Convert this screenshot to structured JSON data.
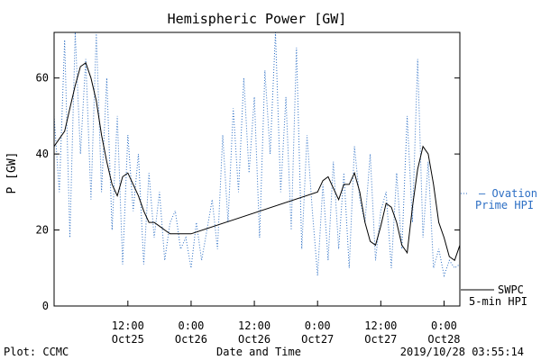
{
  "chart_data": {
    "type": "line",
    "title": "Hemispheric Power [GW]",
    "xlabel": "Date and Time",
    "ylabel": "P [GW]",
    "ylim": [
      0,
      72
    ],
    "xlim": [
      "2019-10-24T22:00",
      "2019-10-28T03:00"
    ],
    "yticks": [
      0,
      20,
      40,
      60
    ],
    "xticks": [
      {
        "t": "2019-10-25T12:00",
        "label1": "12:00",
        "label2": "Oct25"
      },
      {
        "t": "2019-10-26T00:00",
        "label1": "0:00",
        "label2": "Oct26"
      },
      {
        "t": "2019-10-26T12:00",
        "label1": "12:00",
        "label2": "Oct26"
      },
      {
        "t": "2019-10-27T00:00",
        "label1": "0:00",
        "label2": "Oct27"
      },
      {
        "t": "2019-10-27T12:00",
        "label1": "12:00",
        "label2": "Oct27"
      },
      {
        "t": "2019-10-28T00:00",
        "label1": "0:00",
        "label2": "Oct28"
      }
    ],
    "grid": false,
    "legend": [
      {
        "line1": "— Ovation",
        "line2": "Prime HPI",
        "color": "#2d6fc4",
        "style": "dotted"
      },
      {
        "line1": "SWPC",
        "line2": "5-min HPI",
        "color": "#000000",
        "style": "solid"
      }
    ],
    "series": [
      {
        "style": "solid",
        "color": "#000000",
        "x": [
          "2019-10-24T22:00",
          "2019-10-24T23:00",
          "2019-10-25T00:00",
          "2019-10-25T01:00",
          "2019-10-25T02:00",
          "2019-10-25T03:00",
          "2019-10-25T04:00",
          "2019-10-25T05:00",
          "2019-10-25T06:00",
          "2019-10-25T07:00",
          "2019-10-25T08:00",
          "2019-10-25T09:00",
          "2019-10-25T10:00",
          "2019-10-25T11:00",
          "2019-10-25T12:00",
          "2019-10-25T13:00",
          "2019-10-25T14:00",
          "2019-10-25T15:00",
          "2019-10-25T16:00",
          "2019-10-25T17:00",
          "2019-10-25T18:00",
          "2019-10-25T19:00",
          "2019-10-25T20:00",
          "2019-10-25T21:00",
          "2019-10-25T22:00",
          "2019-10-25T23:00",
          "2019-10-26T00:00",
          "2019-10-27T00:00",
          "2019-10-27T01:00",
          "2019-10-27T02:00",
          "2019-10-27T03:00",
          "2019-10-27T04:00",
          "2019-10-27T05:00",
          "2019-10-27T06:00",
          "2019-10-27T07:00",
          "2019-10-27T08:00",
          "2019-10-27T09:00",
          "2019-10-27T10:00",
          "2019-10-27T11:00",
          "2019-10-27T12:00",
          "2019-10-27T13:00",
          "2019-10-27T14:00",
          "2019-10-27T15:00",
          "2019-10-27T16:00",
          "2019-10-27T17:00",
          "2019-10-27T18:00",
          "2019-10-27T19:00",
          "2019-10-27T20:00",
          "2019-10-27T21:00",
          "2019-10-27T22:00",
          "2019-10-27T23:00",
          "2019-10-28T00:00",
          "2019-10-28T01:00",
          "2019-10-28T02:00",
          "2019-10-28T03:00"
        ],
        "y": [
          42,
          44,
          46,
          52,
          58,
          63,
          64,
          60,
          54,
          45,
          38,
          32,
          29,
          34,
          35,
          32,
          29,
          25,
          22,
          22,
          21,
          20,
          19,
          19,
          19,
          19,
          19,
          30,
          33,
          34,
          31,
          28,
          32,
          32,
          35,
          30,
          22,
          17,
          16,
          21,
          27,
          26,
          22,
          16,
          14,
          26,
          36,
          42,
          40,
          32,
          22,
          18,
          13,
          12,
          16
        ]
      },
      {
        "style": "dotted",
        "color": "#2d6fc4",
        "x": [
          "2019-10-24T22:00",
          "2019-10-24T23:00",
          "2019-10-25T00:00",
          "2019-10-25T01:00",
          "2019-10-25T02:00",
          "2019-10-25T03:00",
          "2019-10-25T04:00",
          "2019-10-25T05:00",
          "2019-10-25T06:00",
          "2019-10-25T07:00",
          "2019-10-25T08:00",
          "2019-10-25T09:00",
          "2019-10-25T10:00",
          "2019-10-25T11:00",
          "2019-10-25T12:00",
          "2019-10-25T13:00",
          "2019-10-25T14:00",
          "2019-10-25T15:00",
          "2019-10-25T16:00",
          "2019-10-25T17:00",
          "2019-10-25T18:00",
          "2019-10-25T19:00",
          "2019-10-25T20:00",
          "2019-10-25T21:00",
          "2019-10-25T22:00",
          "2019-10-25T23:00",
          "2019-10-26T00:00",
          "2019-10-26T01:00",
          "2019-10-26T02:00",
          "2019-10-26T03:00",
          "2019-10-26T04:00",
          "2019-10-26T05:00",
          "2019-10-26T06:00",
          "2019-10-26T07:00",
          "2019-10-26T08:00",
          "2019-10-26T09:00",
          "2019-10-26T10:00",
          "2019-10-26T11:00",
          "2019-10-26T12:00",
          "2019-10-26T13:00",
          "2019-10-26T14:00",
          "2019-10-26T15:00",
          "2019-10-26T16:00",
          "2019-10-26T17:00",
          "2019-10-26T18:00",
          "2019-10-26T19:00",
          "2019-10-26T20:00",
          "2019-10-26T21:00",
          "2019-10-26T22:00",
          "2019-10-26T23:00",
          "2019-10-27T00:00",
          "2019-10-27T01:00",
          "2019-10-27T02:00",
          "2019-10-27T03:00",
          "2019-10-27T04:00",
          "2019-10-27T05:00",
          "2019-10-27T06:00",
          "2019-10-27T07:00",
          "2019-10-27T08:00",
          "2019-10-27T09:00",
          "2019-10-27T10:00",
          "2019-10-27T11:00",
          "2019-10-27T12:00",
          "2019-10-27T13:00",
          "2019-10-27T14:00",
          "2019-10-27T15:00",
          "2019-10-27T16:00",
          "2019-10-27T17:00",
          "2019-10-27T18:00",
          "2019-10-27T19:00",
          "2019-10-27T20:00",
          "2019-10-27T21:00",
          "2019-10-27T22:00",
          "2019-10-27T23:00",
          "2019-10-28T00:00",
          "2019-10-28T01:00",
          "2019-10-28T02:00",
          "2019-10-28T03:00"
        ],
        "y": [
          50,
          30,
          70,
          18,
          72,
          40,
          65,
          28,
          72,
          30,
          60,
          20,
          50,
          11,
          45,
          25,
          40,
          11,
          35,
          18,
          30,
          12,
          22,
          25,
          15,
          18,
          10,
          22,
          12,
          20,
          28,
          15,
          45,
          22,
          52,
          30,
          60,
          35,
          55,
          18,
          62,
          40,
          72,
          30,
          55,
          20,
          68,
          15,
          45,
          25,
          8,
          32,
          12,
          38,
          15,
          35,
          10,
          42,
          28,
          22,
          40,
          12,
          25,
          30,
          10,
          35,
          15,
          50,
          22,
          65,
          18,
          38,
          10,
          15,
          8,
          12,
          10,
          11
        ]
      }
    ],
    "footer": {
      "left": "Plot: CCMC",
      "right": "2019/10/28 03:55:14"
    }
  }
}
